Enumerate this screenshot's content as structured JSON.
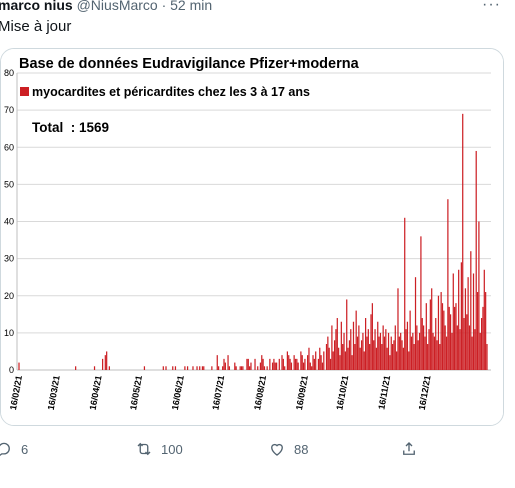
{
  "tweet": {
    "author_name": "marco nius",
    "handle_time": "@NiusMarco · 52 min",
    "more_label": "···",
    "text": "Mise à jour"
  },
  "actions": {
    "reply_count": "6",
    "retweet_count": "100",
    "like_count": "88"
  },
  "icons": [
    "more-icon",
    "reply-icon",
    "retweet-icon",
    "like-icon",
    "share-icon"
  ],
  "chart_data": {
    "type": "bar",
    "title": "Base de données Eudravigilance Pfizer+moderna",
    "legend": "myocardites et péricardites chez les 3 à 17 ans",
    "total_label": "Total  : 1569",
    "color": "#cc1f24",
    "ylim": [
      0,
      80
    ],
    "yticks": [
      0,
      10,
      20,
      30,
      40,
      50,
      60,
      70,
      80
    ],
    "xlabels": [
      "16/02/21",
      "16/03/21",
      "16/04/21",
      "16/05/21",
      "16/06/21",
      "16/07/21",
      "16/08/21",
      "16/09/21",
      "16/10/21",
      "16/11/21",
      "16/12/21"
    ],
    "x_start": "2021-02-16",
    "values": [
      2,
      0,
      0,
      0,
      0,
      0,
      0,
      0,
      0,
      0,
      0,
      0,
      0,
      0,
      0,
      0,
      0,
      0,
      0,
      0,
      0,
      0,
      0,
      0,
      0,
      0,
      0,
      0,
      0,
      0,
      0,
      0,
      0,
      0,
      0,
      0,
      0,
      0,
      0,
      0,
      0,
      0,
      1,
      0,
      0,
      0,
      0,
      0,
      0,
      0,
      0,
      0,
      0,
      0,
      0,
      0,
      1,
      0,
      0,
      0,
      0,
      0,
      3,
      0,
      4,
      5,
      0,
      1,
      0,
      0,
      0,
      0,
      0,
      0,
      0,
      0,
      0,
      0,
      0,
      0,
      0,
      0,
      0,
      0,
      0,
      0,
      0,
      0,
      0,
      0,
      0,
      0,
      0,
      1,
      0,
      0,
      0,
      0,
      0,
      0,
      0,
      0,
      0,
      0,
      0,
      0,
      0,
      1,
      0,
      1,
      0,
      0,
      0,
      0,
      1,
      0,
      1,
      0,
      0,
      0,
      0,
      0,
      0,
      1,
      0,
      1,
      0,
      0,
      0,
      1,
      0,
      0,
      1,
      0,
      1,
      0,
      1,
      1,
      0,
      0,
      0,
      0,
      0,
      1,
      0,
      0,
      0,
      4,
      1,
      0,
      0,
      1,
      3,
      2,
      0,
      4,
      1,
      0,
      0,
      0,
      2,
      1,
      0,
      0,
      1,
      1,
      1,
      0,
      0,
      3,
      3,
      1,
      2,
      0,
      0,
      3,
      0,
      1,
      0,
      2,
      4,
      3,
      1,
      0,
      1,
      0,
      3,
      0,
      2,
      3,
      2,
      2,
      0,
      3,
      0,
      4,
      3,
      1,
      0,
      5,
      4,
      3,
      2,
      0,
      4,
      3,
      3,
      2,
      0,
      5,
      4,
      2,
      3,
      0,
      4,
      6,
      2,
      1,
      4,
      3,
      5,
      0,
      3,
      6,
      4,
      2,
      5,
      0,
      7,
      9,
      6,
      3,
      12,
      5,
      8,
      11,
      14,
      6,
      4,
      13,
      7,
      10,
      5,
      19,
      6,
      8,
      11,
      4,
      13,
      7,
      16,
      9,
      12,
      6,
      8,
      10,
      5,
      14,
      9,
      11,
      7,
      15,
      18,
      8,
      11,
      6,
      13,
      9,
      10,
      7,
      12,
      9,
      11,
      6,
      10,
      4,
      9,
      7,
      8,
      12,
      5,
      22,
      9,
      10,
      8,
      6,
      41,
      11,
      13,
      5,
      16,
      9,
      10,
      7,
      25,
      12,
      8,
      10,
      36,
      14,
      12,
      9,
      18,
      7,
      11,
      19,
      22,
      10,
      9,
      14,
      8,
      20,
      7,
      21,
      18,
      16,
      12,
      9,
      46,
      17,
      15,
      10,
      26,
      17,
      18,
      12,
      27,
      11,
      29,
      69,
      14,
      22,
      15,
      25,
      12,
      32,
      9,
      26,
      11,
      59,
      21,
      40,
      10,
      14,
      17,
      27,
      21,
      7
    ]
  }
}
